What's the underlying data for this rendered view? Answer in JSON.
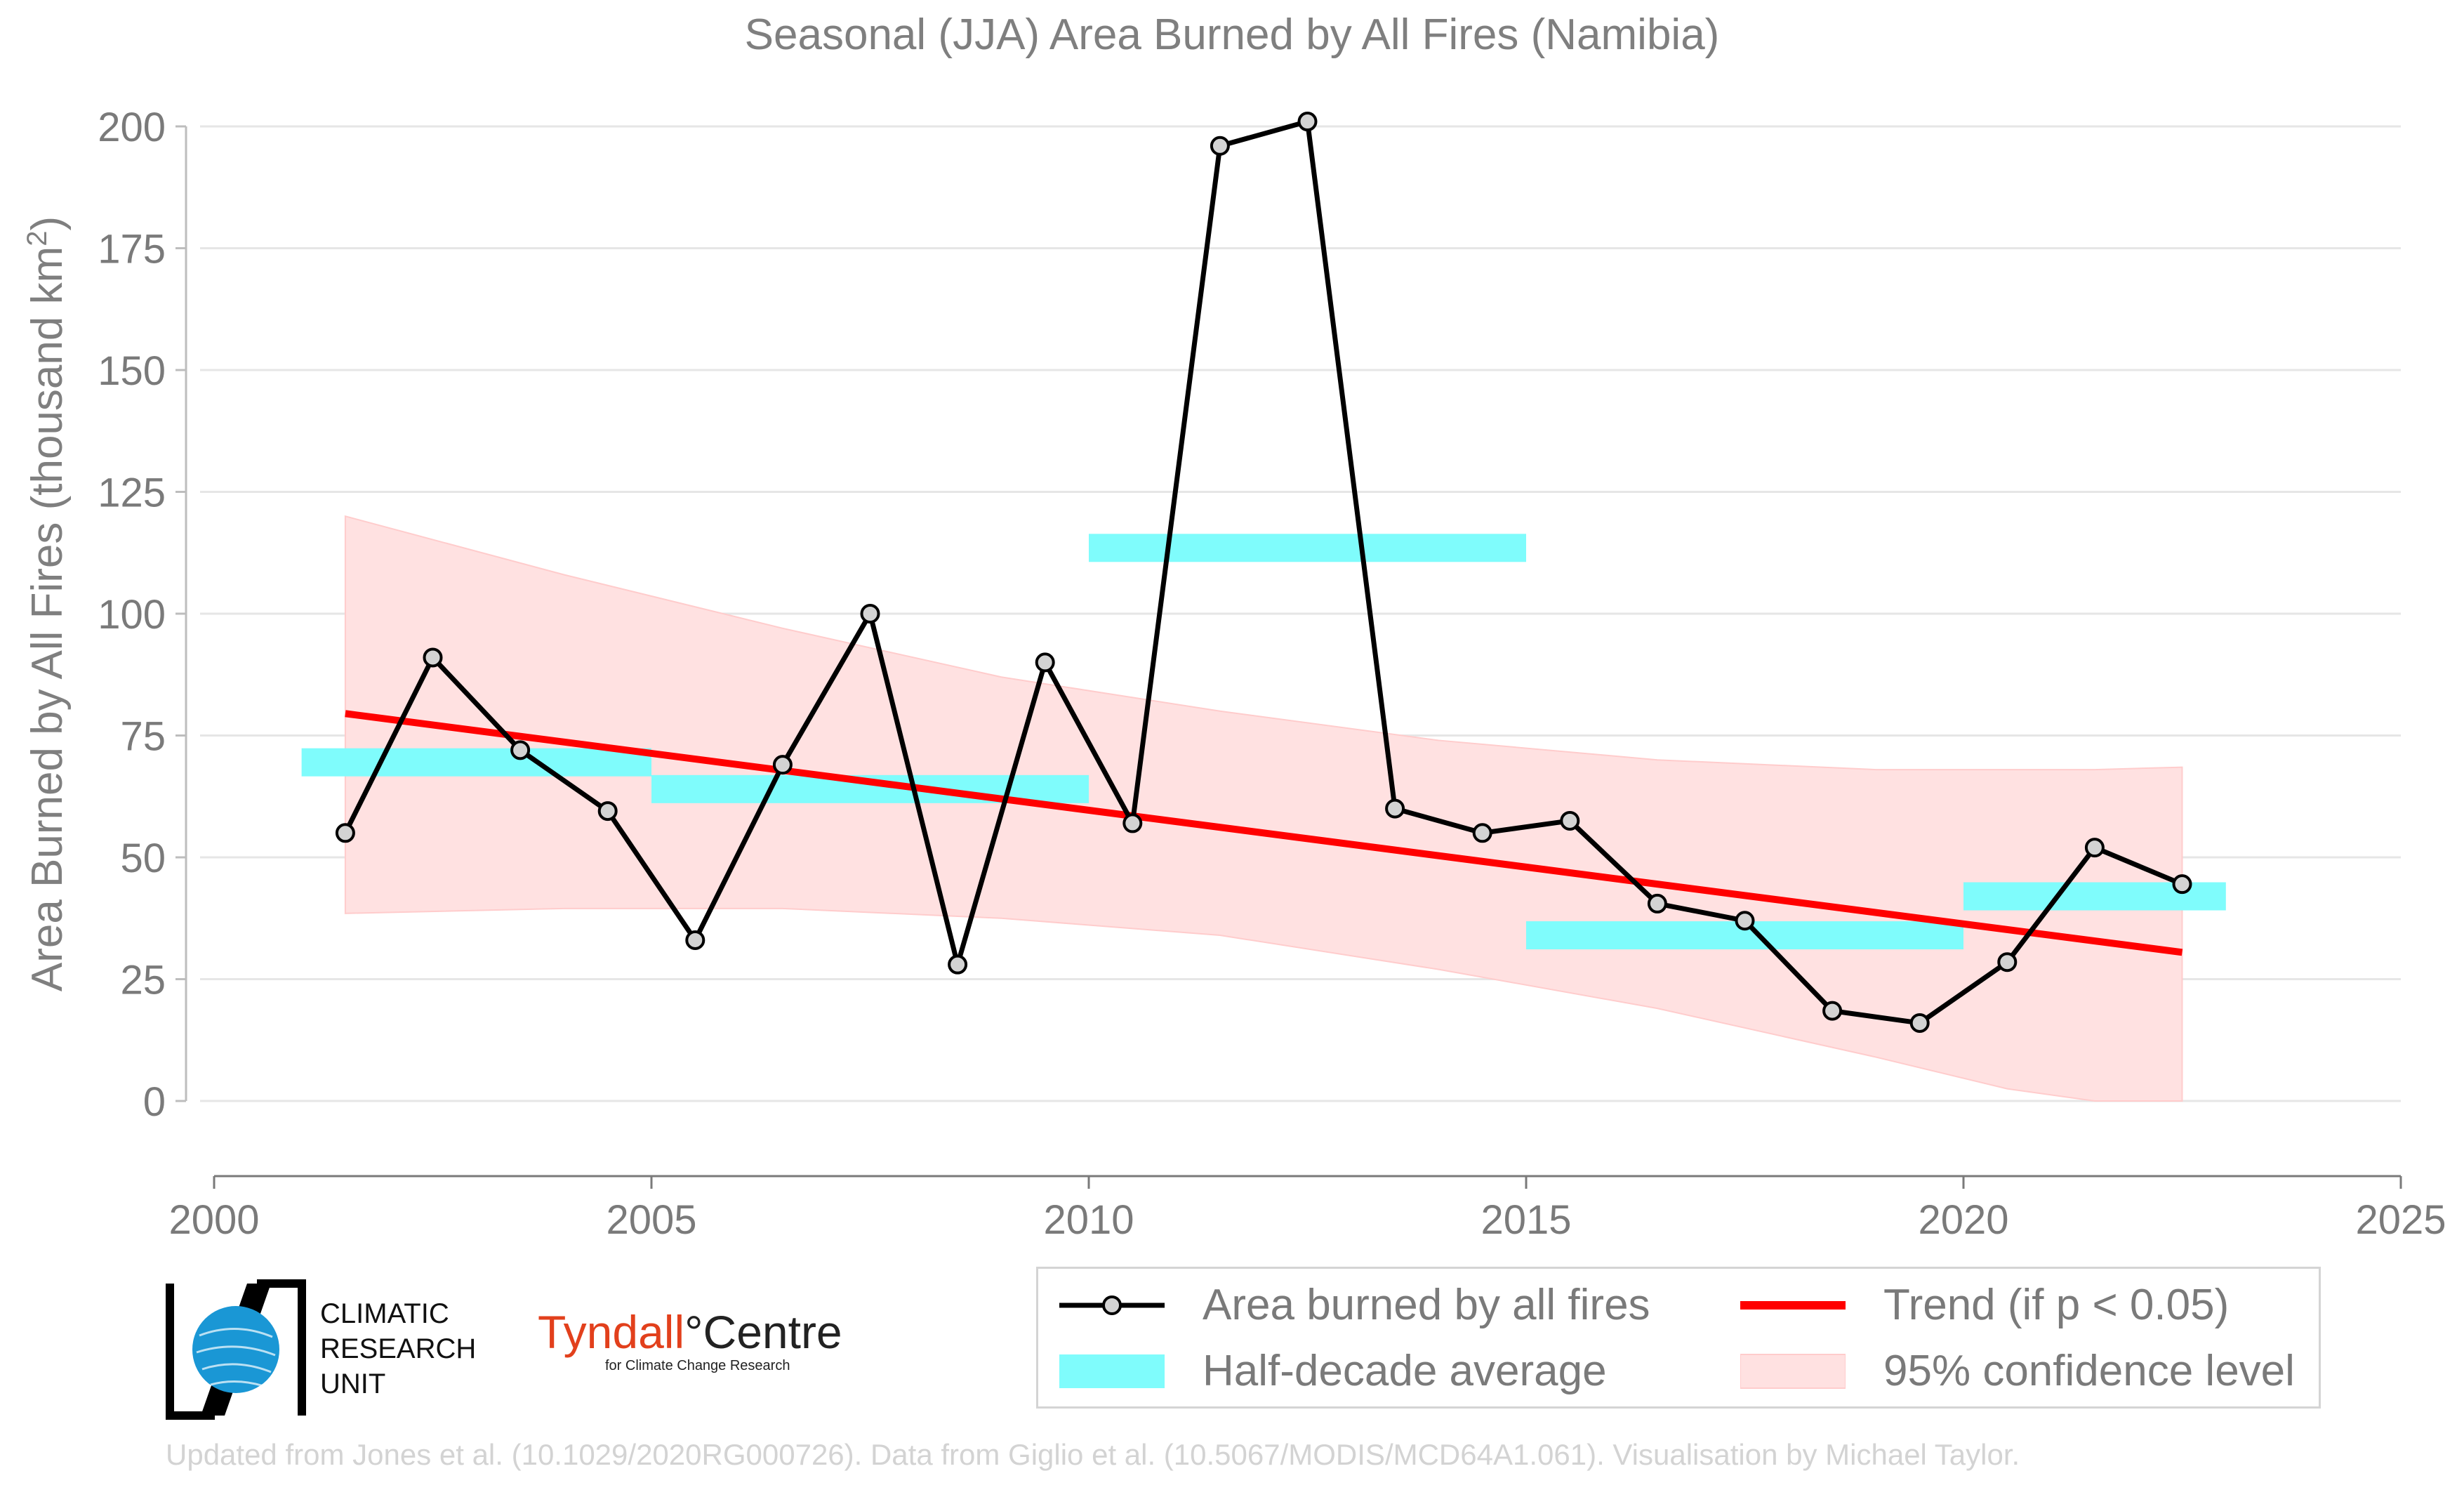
{
  "chart_data": {
    "type": "line",
    "title": "Seasonal (JJA) Area Burned by All Fires (Namibia)",
    "ylabel": "Area Burned by All Fires (thousand km",
    "ylabel_superscript": "2",
    "ylabel_close": ")",
    "xlim": [
      2000,
      2025
    ],
    "ylim": [
      -15,
      205
    ],
    "xticks": [
      2000,
      2005,
      2010,
      2015,
      2020,
      2025
    ],
    "xtick_labels": [
      "2000",
      "2005",
      "2010",
      "2015",
      "2020",
      "2025"
    ],
    "yticks": [
      0,
      25,
      50,
      75,
      100,
      125,
      150,
      175,
      200
    ],
    "ytick_labels": [
      "0",
      "25",
      "50",
      "75",
      "100",
      "125",
      "150",
      "175",
      "200"
    ],
    "grid": "horizontal",
    "series": [
      {
        "name": "Area burned by all fires",
        "color": "#000000",
        "x": [
          2001.5,
          2002.5,
          2003.5,
          2004.5,
          2005.5,
          2006.5,
          2007.5,
          2008.5,
          2009.5,
          2010.5,
          2011.5,
          2012.5,
          2013.5,
          2014.5,
          2015.5,
          2016.5,
          2017.5,
          2018.5,
          2019.5,
          2020.5,
          2021.5,
          2022.5
        ],
        "y": [
          55,
          91,
          72,
          59.5,
          33,
          69,
          100,
          28,
          90,
          57,
          196,
          201,
          60,
          55,
          57.5,
          40.5,
          37,
          18.5,
          16,
          28.5,
          52,
          44.5
        ]
      }
    ],
    "half_decade_average": {
      "name": "Half-decade average",
      "color": "#7ffcfc",
      "segments": [
        {
          "x": [
            2001,
            2005
          ],
          "y": 69.5
        },
        {
          "x": [
            2005,
            2010
          ],
          "y": 64
        },
        {
          "x": [
            2010,
            2015
          ],
          "y": 113.5
        },
        {
          "x": [
            2015,
            2020
          ],
          "y": 34
        },
        {
          "x": [
            2020,
            2023
          ],
          "y": 42
        }
      ]
    },
    "trend": {
      "name": "Trend (if p < 0.05)",
      "color": "#ff0000",
      "x": [
        2001.5,
        2022.5
      ],
      "y": [
        79.5,
        30.5
      ]
    },
    "confidence_band": {
      "name": "95% confidence level",
      "color": "#ffe1e1",
      "x": [
        2001.5,
        2004,
        2006.5,
        2009,
        2011.5,
        2014,
        2016.5,
        2019,
        2020.5,
        2021.5,
        2022.5
      ],
      "upper": [
        120,
        108,
        97,
        87,
        80,
        74,
        70,
        68,
        68,
        68,
        68.5
      ],
      "lower": [
        38.5,
        39.5,
        39.5,
        37.5,
        34,
        27,
        19,
        9,
        2.5,
        0,
        0
      ]
    },
    "legend_placement": "bottom-right"
  },
  "logos": {
    "cru_lines": [
      "CLIMATIC",
      "RESEARCH",
      "UNIT"
    ],
    "tyndall_part1": "Tyndall",
    "tyndall_degree": "°",
    "tyndall_part2": "Centre",
    "tyndall_sub": "for Climate Change Research"
  },
  "credit": "Updated from Jones et al. (10.1029/2020RG000726). Data from Giglio et al. (10.5067/MODIS/MCD64A1.061). Visualisation by Michael Taylor."
}
